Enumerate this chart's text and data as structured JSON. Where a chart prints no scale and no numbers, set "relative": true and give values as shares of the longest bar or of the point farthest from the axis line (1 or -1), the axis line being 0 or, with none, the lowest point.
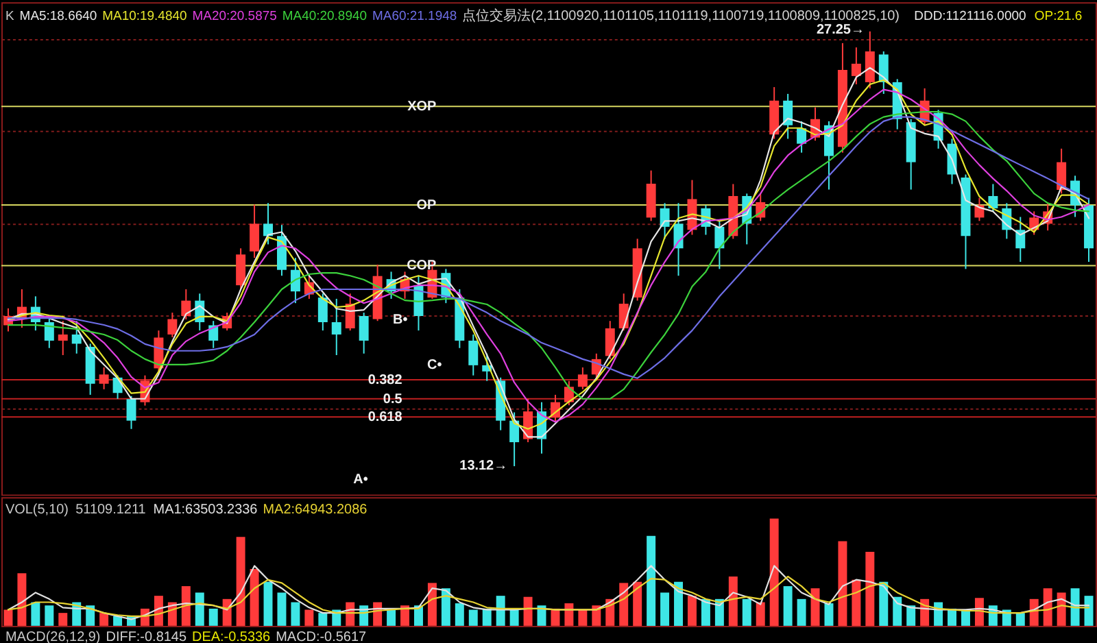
{
  "chart_data": [
    {
      "type": "candlestick",
      "title": "K",
      "legend": "top left",
      "tick_labels": false,
      "grid": "y",
      "ylim": [
        12.2,
        28.2
      ],
      "yticks": [
        15,
        18,
        21,
        24,
        27
      ],
      "categories": [
        null,
        null,
        null,
        null,
        null,
        null,
        null,
        null,
        null,
        null,
        null,
        null,
        null,
        null,
        null,
        null,
        null,
        null,
        null,
        null,
        null,
        null,
        null,
        null,
        null,
        null,
        null,
        null,
        null,
        null,
        null,
        null,
        null,
        null,
        null,
        null,
        null,
        null,
        null,
        null,
        null,
        null,
        null,
        null,
        null,
        null,
        null,
        null,
        null,
        null,
        null,
        null,
        null,
        null,
        null,
        null,
        null,
        null,
        null,
        null,
        null,
        null,
        null,
        null,
        null,
        null,
        null,
        null,
        null,
        null,
        null,
        null,
        null,
        null,
        null,
        null,
        null,
        null,
        null,
        null
      ],
      "ohlc": [
        [
          17.7,
          18.25,
          17.5,
          18.0
        ],
        [
          17.9,
          18.87,
          17.62,
          18.3
        ],
        [
          18.3,
          18.64,
          17.53,
          17.8
        ],
        [
          17.8,
          17.98,
          16.96,
          17.2
        ],
        [
          17.2,
          17.84,
          16.73,
          17.4
        ],
        [
          17.4,
          17.84,
          16.78,
          17.1
        ],
        [
          17.0,
          17.1,
          15.44,
          15.8
        ],
        [
          15.8,
          16.33,
          15.62,
          16.1
        ],
        [
          16.0,
          16.07,
          15.31,
          15.5
        ],
        [
          15.3,
          15.4,
          14.33,
          14.6
        ],
        [
          15.2,
          16.07,
          15.09,
          15.9
        ],
        [
          16.3,
          17.53,
          16.2,
          17.3
        ],
        [
          17.4,
          18.11,
          17.31,
          17.9
        ],
        [
          18.0,
          18.87,
          17.89,
          18.5
        ],
        [
          18.5,
          18.73,
          17.53,
          17.8
        ],
        [
          17.7,
          17.84,
          16.96,
          17.2
        ],
        [
          17.6,
          18.11,
          17.53,
          18.0
        ],
        [
          19.0,
          20.2,
          18.87,
          20.0
        ],
        [
          20.1,
          21.62,
          19.89,
          21.0
        ],
        [
          21.0,
          21.67,
          20.33,
          20.6
        ],
        [
          20.6,
          20.96,
          19.31,
          19.5
        ],
        [
          19.5,
          19.89,
          18.42,
          18.8
        ],
        [
          18.7,
          19.31,
          18.56,
          19.1
        ],
        [
          18.6,
          18.73,
          17.53,
          17.8
        ],
        [
          17.8,
          18.56,
          16.73,
          17.4
        ],
        [
          17.6,
          18.73,
          17.53,
          18.4
        ],
        [
          18.0,
          18.11,
          16.78,
          17.2
        ],
        [
          17.9,
          19.67,
          17.84,
          19.3
        ],
        [
          19.2,
          19.44,
          18.56,
          18.8
        ],
        [
          18.8,
          19.44,
          18.56,
          19.2
        ],
        [
          19.0,
          19.31,
          17.53,
          18.0
        ],
        [
          18.6,
          19.76,
          18.56,
          19.5
        ],
        [
          19.4,
          19.53,
          18.42,
          18.6
        ],
        [
          18.6,
          18.87,
          16.96,
          17.2
        ],
        [
          17.2,
          17.4,
          16.07,
          16.4
        ],
        [
          16.4,
          16.78,
          15.89,
          16.2
        ],
        [
          15.9,
          16.0,
          14.29,
          14.6
        ],
        [
          14.6,
          14.87,
          13.12,
          13.9
        ],
        [
          14.0,
          15.31,
          13.9,
          14.9
        ],
        [
          14.9,
          15.2,
          13.53,
          14.0
        ],
        [
          14.7,
          15.44,
          14.56,
          15.2
        ],
        [
          15.2,
          15.89,
          15.1,
          15.7
        ],
        [
          15.7,
          16.33,
          15.62,
          16.1
        ],
        [
          16.1,
          16.78,
          16.0,
          16.6
        ],
        [
          16.7,
          17.84,
          16.6,
          17.6
        ],
        [
          17.6,
          18.73,
          17.53,
          18.4
        ],
        [
          18.6,
          20.51,
          18.5,
          20.2
        ],
        [
          21.2,
          22.73,
          21.09,
          22.3
        ],
        [
          21.5,
          21.67,
          20.51,
          20.9
        ],
        [
          21.0,
          21.67,
          19.31,
          20.2
        ],
        [
          20.8,
          22.42,
          20.64,
          21.8
        ],
        [
          21.5,
          21.6,
          20.64,
          20.9
        ],
        [
          20.9,
          21.09,
          19.53,
          20.2
        ],
        [
          20.6,
          22.29,
          20.51,
          21.9
        ],
        [
          21.9,
          21.98,
          20.33,
          21.0
        ],
        [
          21.2,
          21.98,
          21.09,
          21.7
        ],
        [
          23.9,
          25.44,
          23.76,
          25.0
        ],
        [
          25.0,
          25.22,
          23.76,
          24.2
        ],
        [
          24.1,
          24.33,
          23.31,
          23.6
        ],
        [
          23.8,
          24.78,
          23.7,
          24.4
        ],
        [
          24.2,
          24.33,
          22.11,
          23.2
        ],
        [
          23.5,
          26.87,
          23.31,
          26.0
        ],
        [
          25.8,
          26.73,
          25.53,
          26.2
        ],
        [
          25.6,
          27.25,
          25.4,
          26.6
        ],
        [
          26.5,
          26.6,
          25.22,
          25.6
        ],
        [
          25.6,
          25.7,
          24.07,
          24.4
        ],
        [
          24.3,
          24.4,
          22.11,
          23.0
        ],
        [
          24.3,
          25.4,
          24.2,
          25.0
        ],
        [
          24.6,
          24.7,
          23.44,
          23.7
        ],
        [
          23.6,
          23.76,
          22.29,
          22.6
        ],
        [
          22.5,
          22.6,
          19.53,
          20.6
        ],
        [
          21.2,
          21.84,
          21.09,
          21.6
        ],
        [
          21.9,
          22.29,
          21.4,
          21.5
        ],
        [
          21.5,
          21.67,
          20.51,
          20.8
        ],
        [
          20.8,
          21.22,
          19.76,
          20.2
        ],
        [
          20.8,
          21.4,
          20.64,
          21.2
        ],
        [
          21.0,
          21.67,
          20.78,
          21.4
        ],
        [
          22.1,
          23.44,
          21.98,
          23.0
        ],
        [
          22.4,
          22.56,
          21.22,
          21.6
        ],
        [
          21.6,
          21.84,
          19.76,
          20.2
        ]
      ],
      "colors": [
        "#ff3b3b",
        "#ff3b3b",
        "#3ee6e6",
        "#3ee6e6",
        "#ff3b3b",
        "#3ee6e6",
        "#3ee6e6",
        "#ff3b3b",
        "#3ee6e6",
        "#3ee6e6",
        "#ff3b3b",
        "#ff3b3b",
        "#ff3b3b",
        "#ff3b3b",
        "#3ee6e6",
        "#3ee6e6",
        "#ff3b3b",
        "#ff3b3b",
        "#ff3b3b",
        "#3ee6e6",
        "#3ee6e6",
        "#3ee6e6",
        "#ff3b3b",
        "#3ee6e6",
        "#3ee6e6",
        "#ff3b3b",
        "#3ee6e6",
        "#ff3b3b",
        "#3ee6e6",
        "#ff3b3b",
        "#3ee6e6",
        "#ff3b3b",
        "#3ee6e6",
        "#3ee6e6",
        "#3ee6e6",
        "#3ee6e6",
        "#3ee6e6",
        "#3ee6e6",
        "#ff3b3b",
        "#3ee6e6",
        "#ff3b3b",
        "#ff3b3b",
        "#ff3b3b",
        "#ff3b3b",
        "#ff3b3b",
        "#ff3b3b",
        "#ff3b3b",
        "#ff3b3b",
        "#3ee6e6",
        "#3ee6e6",
        "#ff3b3b",
        "#3ee6e6",
        "#3ee6e6",
        "#ff3b3b",
        "#3ee6e6",
        "#ff3b3b",
        "#ff3b3b",
        "#3ee6e6",
        "#3ee6e6",
        "#ff3b3b",
        "#3ee6e6",
        "#ff3b3b",
        "#ff3b3b",
        "#ff3b3b",
        "#3ee6e6",
        "#3ee6e6",
        "#3ee6e6",
        "#ff3b3b",
        "#3ee6e6",
        "#3ee6e6",
        "#3ee6e6",
        "#ff3b3b",
        "#3ee6e6",
        "#3ee6e6",
        "#3ee6e6",
        "#ff3b3b",
        "#ff3b3b",
        "#ff3b3b",
        "#3ee6e6",
        "#3ee6e6"
      ],
      "series": [
        {
          "name": "MA5:18.6640",
          "type": "line",
          "color": "#e6e6e6",
          "values": [
            17.89,
            18.07,
            18.07,
            17.93,
            17.76,
            17.62,
            16.87,
            16.42,
            15.98,
            15.31,
            15.31,
            16.11,
            17.18,
            18.07,
            18.33,
            17.98,
            17.76,
            18.87,
            19.76,
            20.64,
            20.73,
            20.11,
            19.31,
            18.78,
            18.24,
            18.16,
            18.2,
            18.64,
            19.09,
            19.31,
            19.04,
            19.18,
            19.22,
            18.64,
            17.67,
            16.73,
            15.76,
            14.64,
            14.07,
            14.07,
            14.51,
            14.96,
            15.4,
            15.98,
            16.73,
            17.62,
            19.09,
            20.42,
            21.09,
            21.09,
            21.18,
            21.09,
            20.87,
            21.18,
            21.31,
            22.42,
            23.98,
            24.42,
            24.29,
            24.11,
            23.84,
            24.87,
            25.76,
            26.07,
            25.76,
            25.31,
            24.11,
            23.93,
            23.84,
            23.09,
            21.76,
            21.53,
            21.4,
            20.96,
            20.64,
            20.87,
            21.09,
            22.2,
            21.98,
            21.18
          ]
        },
        {
          "name": "MA10:19.4840",
          "type": "line",
          "color": "#e6e62e",
          "values": [
            17.84,
            18.02,
            18.11,
            18.02,
            17.98,
            17.71,
            17.22,
            16.64,
            16.02,
            15.49,
            15.53,
            16.2,
            17.09,
            17.76,
            17.98,
            17.98,
            17.84,
            18.64,
            19.67,
            20.56,
            20.42,
            19.76,
            19.0,
            18.56,
            18.29,
            18.33,
            18.51,
            18.78,
            19.0,
            19.18,
            19.31,
            19.18,
            19.0,
            18.33,
            17.53,
            16.51,
            15.44,
            14.51,
            14.33,
            14.51,
            14.87,
            15.22,
            15.53,
            15.93,
            16.51,
            17.09,
            18.07,
            19.31,
            20.56,
            21.18,
            21.31,
            21.22,
            21.09,
            21.18,
            21.53,
            22.2,
            23.53,
            24.11,
            24.11,
            23.89,
            23.93,
            24.2,
            25.0,
            25.53,
            25.67,
            25.36,
            24.56,
            24.2,
            24.33,
            23.89,
            22.78,
            21.89,
            21.49,
            21.27,
            21.04,
            20.73,
            21.31,
            21.93,
            21.93,
            21.62
          ]
        },
        {
          "name": "MA20:20.5875",
          "type": "line",
          "color": "#e040e0",
          "values": [
            17.84,
            17.89,
            17.98,
            17.98,
            17.93,
            17.8,
            17.49,
            17.13,
            16.64,
            16.02,
            15.67,
            15.84,
            16.73,
            17.18,
            17.44,
            17.62,
            17.8,
            18.42,
            19.44,
            20.07,
            20.29,
            20.2,
            19.84,
            19.31,
            18.91,
            18.64,
            18.42,
            18.56,
            18.73,
            18.91,
            19.0,
            19.0,
            18.96,
            18.73,
            18.07,
            17.4,
            16.78,
            15.84,
            15.22,
            14.78,
            14.56,
            14.78,
            15.13,
            15.67,
            16.29,
            17.18,
            18.11,
            19.0,
            19.76,
            20.42,
            20.82,
            21.09,
            21.13,
            21.18,
            21.44,
            21.98,
            22.69,
            23.22,
            23.58,
            23.84,
            24.07,
            24.24,
            24.64,
            25.04,
            25.36,
            25.27,
            25.04,
            24.73,
            24.42,
            23.98,
            23.4,
            22.91,
            22.47,
            22.07,
            21.62,
            21.27,
            21.13,
            21.22,
            21.4,
            21.62
          ]
        },
        {
          "name": "MA40:20.8940",
          "type": "line",
          "color": "#3cd23c",
          "values": [
            17.71,
            17.71,
            17.71,
            17.67,
            17.62,
            17.58,
            17.49,
            17.4,
            17.22,
            16.87,
            16.6,
            16.42,
            16.42,
            16.42,
            16.47,
            16.56,
            16.87,
            17.31,
            17.8,
            18.33,
            18.87,
            19.18,
            19.36,
            19.4,
            19.4,
            19.31,
            19.18,
            18.96,
            18.73,
            18.51,
            18.47,
            18.51,
            18.56,
            18.56,
            18.47,
            18.38,
            18.11,
            17.76,
            17.44,
            16.96,
            16.33,
            15.67,
            15.31,
            15.31,
            15.31,
            15.62,
            16.2,
            16.82,
            17.4,
            18.07,
            18.96,
            19.44,
            20.2,
            20.73,
            21.09,
            21.36,
            21.76,
            22.11,
            22.42,
            22.73,
            23.04,
            23.4,
            23.84,
            24.24,
            24.47,
            24.56,
            24.6,
            24.64,
            24.64,
            24.56,
            24.33,
            23.84,
            23.4,
            23.04,
            22.51,
            21.98,
            21.67,
            21.53,
            21.44,
            21.4
          ]
        },
        {
          "name": "MA60:21.1948",
          "type": "line",
          "color": "#6e6ee6",
          "values": [
            17.93,
            17.93,
            17.93,
            17.93,
            17.93,
            17.89,
            17.8,
            17.71,
            17.58,
            17.36,
            17.09,
            16.96,
            16.87,
            16.87,
            16.87,
            16.91,
            17.0,
            17.18,
            17.4,
            17.84,
            18.2,
            18.51,
            18.73,
            18.87,
            18.87,
            18.87,
            18.87,
            18.87,
            18.87,
            18.87,
            18.82,
            18.73,
            18.64,
            18.56,
            18.33,
            18.11,
            17.84,
            17.62,
            17.4,
            17.13,
            16.96,
            16.78,
            16.6,
            16.47,
            16.29,
            16.11,
            15.98,
            16.29,
            16.64,
            17.09,
            17.53,
            18.07,
            18.64,
            19.13,
            19.62,
            20.11,
            20.6,
            21.09,
            21.58,
            22.07,
            22.56,
            23.04,
            23.53,
            23.98,
            24.33,
            24.47,
            24.47,
            24.38,
            24.24,
            24.02,
            23.8,
            23.58,
            23.36,
            23.13,
            22.91,
            22.69,
            22.47,
            22.24,
            22.02,
            21.8
          ]
        }
      ],
      "ref_lines": [
        {
          "axis": "y",
          "value": 24.81,
          "label": "XOP",
          "color": "#d8d860"
        },
        {
          "axis": "y",
          "value": 21.61,
          "label": "OP",
          "color": "#d8d860"
        },
        {
          "axis": "y",
          "value": 19.64,
          "label": "COP",
          "color": "#d8d860"
        },
        {
          "axis": "y",
          "value": 15.93,
          "color": "#c02020"
        },
        {
          "axis": "y",
          "value": 15.31,
          "color": "#c02020"
        },
        {
          "axis": "y",
          "value": 14.72,
          "color": "#c02020"
        }
      ],
      "annotations": [
        "点位交易法(2,1100920,1101105,1101119,1100719,1100809,1100825,10)",
        "DDD:1121116.0000",
        "OP:21.6",
        "27.25→",
        "13.12→",
        "A•",
        "B•",
        "C•",
        "0.382",
        "0.5",
        "0.618"
      ]
    },
    {
      "type": "bar",
      "title": "VOL(5,10)",
      "legend": "top left",
      "tick_labels": false,
      "relative": true,
      "categories": [
        null,
        null,
        null,
        null,
        null,
        null,
        null,
        null,
        null,
        null,
        null,
        null,
        null,
        null,
        null,
        null,
        null,
        null,
        null,
        null,
        null,
        null,
        null,
        null,
        null,
        null,
        null,
        null,
        null,
        null,
        null,
        null,
        null,
        null,
        null,
        null,
        null,
        null,
        null,
        null,
        null,
        null,
        null,
        null,
        null,
        null,
        null,
        null,
        null,
        null,
        null,
        null,
        null,
        null,
        null,
        null,
        null,
        null,
        null,
        null,
        null,
        null,
        null,
        null,
        null,
        null,
        null,
        null,
        null,
        null,
        null,
        null,
        null,
        null,
        null,
        null,
        null,
        null,
        null,
        null
      ],
      "series": [
        {
          "colors": [
            "#ff3b3b",
            "#ff3b3b",
            "#3ee6e6",
            "#3ee6e6",
            "#ff3b3b",
            "#3ee6e6",
            "#3ee6e6",
            "#ff3b3b",
            "#3ee6e6",
            "#3ee6e6",
            "#ff3b3b",
            "#ff3b3b",
            "#ff3b3b",
            "#ff3b3b",
            "#3ee6e6",
            "#3ee6e6",
            "#ff3b3b",
            "#ff3b3b",
            "#ff3b3b",
            "#3ee6e6",
            "#3ee6e6",
            "#3ee6e6",
            "#ff3b3b",
            "#3ee6e6",
            "#3ee6e6",
            "#ff3b3b",
            "#3ee6e6",
            "#ff3b3b",
            "#3ee6e6",
            "#ff3b3b",
            "#3ee6e6",
            "#ff3b3b",
            "#3ee6e6",
            "#3ee6e6",
            "#3ee6e6",
            "#3ee6e6",
            "#3ee6e6",
            "#3ee6e6",
            "#ff3b3b",
            "#3ee6e6",
            "#ff3b3b",
            "#ff3b3b",
            "#ff3b3b",
            "#ff3b3b",
            "#ff3b3b",
            "#ff3b3b",
            "#ff3b3b",
            "#3ee6e6",
            "#3ee6e6",
            "#3ee6e6",
            "#ff3b3b",
            "#3ee6e6",
            "#3ee6e6",
            "#ff3b3b",
            "#3ee6e6",
            "#ff3b3b",
            "#ff3b3b",
            "#3ee6e6",
            "#3ee6e6",
            "#ff3b3b",
            "#3ee6e6",
            "#ff3b3b",
            "#ff3b3b",
            "#ff3b3b",
            "#3ee6e6",
            "#3ee6e6",
            "#3ee6e6",
            "#ff3b3b",
            "#3ee6e6",
            "#3ee6e6",
            "#3ee6e6",
            "#ff3b3b",
            "#3ee6e6",
            "#3ee6e6",
            "#3ee6e6",
            "#ff3b3b",
            "#ff3b3b",
            "#ff3b3b",
            "#3ee6e6",
            "#3ee6e6"
          ],
          "values": [
            0.15,
            0.49,
            0.22,
            0.19,
            0.12,
            0.22,
            0.19,
            0.12,
            0.09,
            0.09,
            0.16,
            0.28,
            0.22,
            0.37,
            0.31,
            0.16,
            0.25,
            0.83,
            0.53,
            0.41,
            0.31,
            0.22,
            0.15,
            0.12,
            0.15,
            0.22,
            0.19,
            0.22,
            0.16,
            0.19,
            0.19,
            0.4,
            0.35,
            0.21,
            0.15,
            0.16,
            0.28,
            0.15,
            0.27,
            0.19,
            0.16,
            0.21,
            0.15,
            0.19,
            0.25,
            0.4,
            0.41,
            0.84,
            0.31,
            0.41,
            0.28,
            0.25,
            0.25,
            0.46,
            0.25,
            0.22,
            1,
            0.37,
            0.25,
            0.35,
            0.21,
            0.79,
            0.43,
            0.69,
            0.41,
            0.27,
            0.19,
            0.25,
            0.22,
            0.16,
            0.15,
            0.26,
            0.19,
            0.15,
            0.12,
            0.25,
            0.35,
            0.31,
            0.35,
            0.28
          ]
        },
        {
          "name": "MA1:63503.2336",
          "type": "line",
          "color": "#e0e0e0",
          "values": [
            0.15,
            0.22,
            0.31,
            0.25,
            0.17,
            0.16,
            0.16,
            0.12,
            0.09,
            0.06,
            0.1,
            0.16,
            0.19,
            0.21,
            0.2,
            0.19,
            0.15,
            0.31,
            0.56,
            0.43,
            0.35,
            0.25,
            0.17,
            0.12,
            0.12,
            0.15,
            0.15,
            0.16,
            0.16,
            0.16,
            0.17,
            0.35,
            0.33,
            0.22,
            0.17,
            0.15,
            0.15,
            0.15,
            0.16,
            0.16,
            0.15,
            0.15,
            0.15,
            0.15,
            0.22,
            0.31,
            0.43,
            0.56,
            0.43,
            0.32,
            0.28,
            0.22,
            0.19,
            0.31,
            0.27,
            0.2,
            0.56,
            0.43,
            0.31,
            0.25,
            0.2,
            0.37,
            0.43,
            0.41,
            0.37,
            0.21,
            0.17,
            0.16,
            0.15,
            0.15,
            0.15,
            0.16,
            0.15,
            0.12,
            0.12,
            0.15,
            0.22,
            0.25,
            0.19,
            0.19
          ]
        },
        {
          "name": "MA2:64943.2086",
          "type": "line",
          "color": "#e6d232",
          "values": [
            0.15,
            0.17,
            0.22,
            0.22,
            0.21,
            0.19,
            0.16,
            0.12,
            0.1,
            0.09,
            0.09,
            0.11,
            0.15,
            0.19,
            0.21,
            0.19,
            0.16,
            0.22,
            0.35,
            0.43,
            0.4,
            0.31,
            0.22,
            0.15,
            0.12,
            0.12,
            0.12,
            0.14,
            0.15,
            0.16,
            0.16,
            0.25,
            0.28,
            0.25,
            0.22,
            0.17,
            0.16,
            0.16,
            0.16,
            0.16,
            0.15,
            0.15,
            0.15,
            0.15,
            0.19,
            0.25,
            0.35,
            0.44,
            0.43,
            0.35,
            0.31,
            0.25,
            0.22,
            0.25,
            0.27,
            0.25,
            0.35,
            0.46,
            0.37,
            0.25,
            0.22,
            0.27,
            0.31,
            0.37,
            0.4,
            0.31,
            0.25,
            0.19,
            0.16,
            0.15,
            0.14,
            0.14,
            0.12,
            0.12,
            0.12,
            0.14,
            0.15,
            0.19,
            0.17,
            0.17
          ]
        }
      ],
      "annotations": [
        "51109.1211"
      ]
    },
    {
      "type": "other",
      "title": "MACD(26,12,9)",
      "annotations": [
        "DIFF:-0.8145",
        "DEA:-0.5336",
        "MACD:-0.5617"
      ]
    }
  ]
}
